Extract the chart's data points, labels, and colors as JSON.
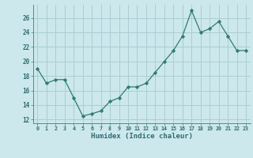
{
  "x": [
    0,
    1,
    2,
    3,
    4,
    5,
    6,
    7,
    8,
    9,
    10,
    11,
    12,
    13,
    14,
    15,
    16,
    17,
    18,
    19,
    20,
    21,
    22,
    23
  ],
  "y": [
    19.0,
    17.0,
    17.5,
    17.5,
    15.0,
    12.5,
    12.8,
    13.2,
    14.5,
    15.0,
    16.5,
    16.5,
    17.0,
    18.5,
    20.0,
    21.5,
    23.5,
    27.0,
    24.0,
    24.5,
    25.5,
    23.5,
    21.5,
    21.5
  ],
  "xlabel": "Humidex (Indice chaleur)",
  "ylim": [
    11.5,
    27.8
  ],
  "xlim": [
    -0.5,
    23.5
  ],
  "yticks": [
    12,
    14,
    16,
    18,
    20,
    22,
    24,
    26
  ],
  "xtick_labels": [
    "0",
    "1",
    "2",
    "3",
    "4",
    "5",
    "6",
    "7",
    "8",
    "9",
    "10",
    "11",
    "12",
    "13",
    "14",
    "15",
    "16",
    "17",
    "18",
    "19",
    "20",
    "21",
    "22",
    "23"
  ],
  "line_color": "#2e7d6e",
  "marker": "D",
  "marker_size": 2.2,
  "bg_color": "#cce8ec",
  "grid_color": "#aacdd4",
  "spine_color": "#4a9090",
  "label_color": "#2e6b70"
}
